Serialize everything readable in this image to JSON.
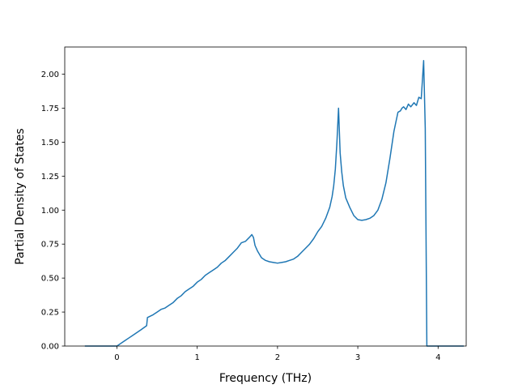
{
  "chart_data": {
    "type": "line",
    "title": "",
    "xlabel": "Frequency (THz)",
    "ylabel": "Partial Density of States",
    "xlim": [
      -0.65,
      4.35
    ],
    "ylim": [
      0.0,
      2.2
    ],
    "xticks": [
      0,
      1,
      2,
      3,
      4
    ],
    "xtick_labels": [
      "0",
      "1",
      "2",
      "3",
      "4"
    ],
    "yticks": [
      0.0,
      0.25,
      0.5,
      0.75,
      1.0,
      1.25,
      1.5,
      1.75,
      2.0
    ],
    "ytick_labels": [
      "0.00",
      "0.25",
      "0.50",
      "0.75",
      "1.00",
      "1.25",
      "1.50",
      "1.75",
      "2.00"
    ],
    "grid": false,
    "line_color": "#1f77b4",
    "series": [
      {
        "x": [
          -0.4,
          -0.2,
          0.0,
          0.05,
          0.1,
          0.15,
          0.2,
          0.25,
          0.3,
          0.37,
          0.38,
          0.45,
          0.5,
          0.55,
          0.6,
          0.65,
          0.7,
          0.75,
          0.8,
          0.85,
          0.9,
          0.95,
          1.0,
          1.05,
          1.1,
          1.15,
          1.2,
          1.25,
          1.3,
          1.35,
          1.4,
          1.45,
          1.5,
          1.55,
          1.6,
          1.65,
          1.68,
          1.7,
          1.72,
          1.75,
          1.8,
          1.85,
          1.9,
          1.95,
          2.0,
          2.05,
          2.1,
          2.15,
          2.2,
          2.25,
          2.3,
          2.35,
          2.4,
          2.45,
          2.5,
          2.55,
          2.6,
          2.65,
          2.68,
          2.7,
          2.72,
          2.74,
          2.76,
          2.78,
          2.8,
          2.82,
          2.85,
          2.9,
          2.95,
          3.0,
          3.05,
          3.1,
          3.15,
          3.2,
          3.25,
          3.3,
          3.35,
          3.4,
          3.45,
          3.5,
          3.53,
          3.55,
          3.57,
          3.6,
          3.63,
          3.66,
          3.7,
          3.73,
          3.76,
          3.79,
          3.82,
          3.84,
          3.86,
          3.88,
          3.9,
          3.92,
          3.93,
          3.95,
          4.0,
          4.1,
          4.2,
          4.32
        ],
        "y": [
          0.0,
          0.0,
          0.0,
          0.02,
          0.04,
          0.06,
          0.08,
          0.1,
          0.12,
          0.15,
          0.21,
          0.23,
          0.25,
          0.27,
          0.28,
          0.3,
          0.32,
          0.35,
          0.37,
          0.4,
          0.42,
          0.44,
          0.47,
          0.49,
          0.52,
          0.54,
          0.56,
          0.58,
          0.61,
          0.63,
          0.66,
          0.69,
          0.72,
          0.76,
          0.77,
          0.8,
          0.82,
          0.8,
          0.74,
          0.7,
          0.65,
          0.63,
          0.62,
          0.615,
          0.61,
          0.615,
          0.62,
          0.63,
          0.64,
          0.66,
          0.69,
          0.72,
          0.75,
          0.79,
          0.84,
          0.88,
          0.94,
          1.02,
          1.1,
          1.18,
          1.3,
          1.5,
          1.75,
          1.42,
          1.28,
          1.18,
          1.09,
          1.02,
          0.96,
          0.93,
          0.925,
          0.93,
          0.94,
          0.96,
          1.0,
          1.08,
          1.2,
          1.38,
          1.58,
          1.72,
          1.73,
          1.75,
          1.76,
          1.74,
          1.78,
          1.76,
          1.79,
          1.77,
          1.83,
          1.82,
          2.1,
          1.6,
          0.0,
          0.0,
          0.0,
          0.0,
          0.0,
          0.0,
          0.0,
          0.0,
          0.0,
          0.0
        ]
      }
    ]
  }
}
